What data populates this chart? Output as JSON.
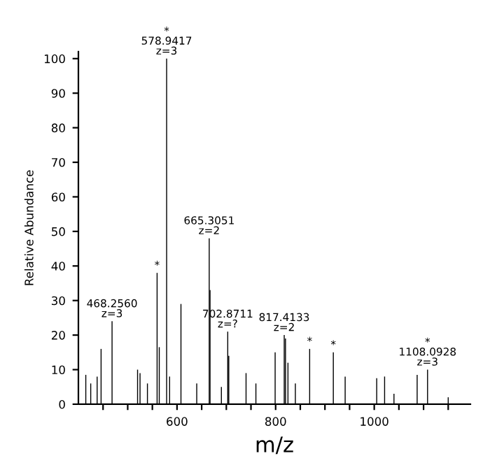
{
  "chart_data": {
    "type": "bar",
    "xlabel": "m/z",
    "ylabel": "Relative Abundance",
    "color": "#000000",
    "x": [
      415,
      425,
      438,
      446,
      468.256,
      520,
      525,
      540,
      559.6,
      564,
      578.9417,
      585,
      608,
      640,
      665.3051,
      667,
      690,
      702.8711,
      705,
      740,
      760,
      799,
      817.4133,
      820,
      825,
      840,
      869,
      917,
      941,
      1005,
      1021,
      1040,
      1087,
      1108.0928,
      1150
    ],
    "values": [
      8.5,
      6,
      8,
      16,
      24,
      10,
      9,
      6,
      38,
      16.5,
      100,
      8,
      29,
      6,
      48,
      33,
      5,
      21,
      14,
      9,
      6,
      15,
      20,
      19,
      12,
      6,
      16,
      15,
      8,
      7.5,
      8,
      3,
      8.5,
      10,
      2
    ],
    "xlim": [
      400,
      1195
    ],
    "ylim": [
      0,
      102
    ],
    "xticks": [
      {
        "value": 450,
        "label": null
      },
      {
        "value": 500,
        "label": null
      },
      {
        "value": 550,
        "label": null
      },
      600,
      {
        "value": 650,
        "label": null
      },
      {
        "value": 700,
        "label": null
      },
      {
        "value": 750,
        "label": null
      },
      800,
      {
        "value": 850,
        "label": null
      },
      {
        "value": 900,
        "label": null
      },
      {
        "value": 950,
        "label": null
      },
      1000,
      {
        "value": 1050,
        "label": null
      },
      {
        "value": 1100,
        "label": null
      },
      {
        "value": 1150,
        "label": null
      }
    ],
    "yticks": [
      0,
      10,
      20,
      30,
      40,
      50,
      60,
      70,
      80,
      90,
      100
    ],
    "grid": false,
    "annotations": [
      {
        "text": "*\n578.9417\nz=3",
        "x": 578.9417,
        "y": 100
      },
      {
        "text": "665.3051\nz=2",
        "x": 665.3051,
        "y": 48
      },
      {
        "text": "*",
        "x": 559.6,
        "y": 38
      },
      {
        "text": "468.2560\nz=3",
        "x": 468.256,
        "y": 24
      },
      {
        "text": "702.8711\nz=?",
        "x": 702.8711,
        "y": 21
      },
      {
        "text": "817.4133\nz=2",
        "x": 817.4133,
        "y": 20
      },
      {
        "text": "*",
        "x": 869,
        "y": 16
      },
      {
        "text": "*",
        "x": 917,
        "y": 15
      },
      {
        "text": "*\n1108.0928\nz=3",
        "x": 1108.0928,
        "y": 10
      }
    ]
  }
}
